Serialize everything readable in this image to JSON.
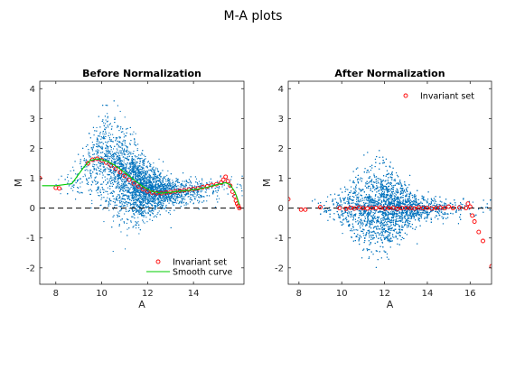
{
  "figure": {
    "title": "M-A plots"
  },
  "chart_data": [
    {
      "type": "scatter",
      "title": "Before Normalization",
      "xlabel": "A",
      "ylabel": "M",
      "xlim": [
        7.3,
        16.2
      ],
      "ylim": [
        -2.55,
        4.25
      ],
      "xticks": [
        8,
        10,
        12,
        14
      ],
      "yticks": [
        -2,
        -1,
        0,
        1,
        2,
        3,
        4
      ],
      "zero_line": 0,
      "grid": false,
      "legend_position": "bottom-right",
      "cloud": {
        "a_center": 11.3,
        "a_spread": 1.1,
        "shape": "arched",
        "color": "#0072BD"
      },
      "series": [
        {
          "name": "Invariant set",
          "marker": "open-circle",
          "color": "#FF0000",
          "x": [
            7.3,
            8.0,
            8.15,
            9.4,
            9.6,
            9.8,
            10.0,
            10.2,
            10.4,
            10.6,
            10.8,
            11.0,
            11.2,
            11.4,
            11.6,
            11.8,
            12.0,
            12.2,
            12.4,
            12.6,
            12.8,
            13.0,
            13.2,
            13.4,
            13.6,
            13.8,
            14.0,
            14.2,
            14.4,
            14.6,
            14.8,
            15.0,
            15.2,
            15.3,
            15.4,
            15.5,
            15.6,
            15.7,
            15.8,
            15.85,
            15.9,
            15.95,
            16.0
          ],
          "y": [
            1.0,
            0.68,
            0.66,
            1.5,
            1.62,
            1.65,
            1.6,
            1.52,
            1.43,
            1.32,
            1.2,
            1.08,
            0.95,
            0.83,
            0.72,
            0.63,
            0.56,
            0.52,
            0.5,
            0.5,
            0.52,
            0.54,
            0.56,
            0.58,
            0.6,
            0.62,
            0.64,
            0.66,
            0.7,
            0.73,
            0.77,
            0.8,
            0.85,
            0.95,
            1.05,
            0.9,
            0.75,
            0.55,
            0.4,
            0.25,
            0.15,
            0.08,
            0.0
          ]
        },
        {
          "name": "Smooth curve",
          "marker": "line",
          "color": "#00CC00",
          "x": [
            7.4,
            8.0,
            8.7,
            9.2,
            9.5,
            9.8,
            10.0,
            10.3,
            10.6,
            11.0,
            11.4,
            11.8,
            12.2,
            12.6,
            13.0,
            13.4,
            13.8,
            14.2,
            14.6,
            15.0,
            15.4,
            15.6,
            15.8,
            15.9,
            16.0
          ],
          "y": [
            0.75,
            0.75,
            0.82,
            1.35,
            1.6,
            1.65,
            1.62,
            1.55,
            1.42,
            1.2,
            0.95,
            0.72,
            0.56,
            0.5,
            0.53,
            0.57,
            0.6,
            0.64,
            0.7,
            0.78,
            0.85,
            0.78,
            0.55,
            0.35,
            0.1
          ]
        }
      ]
    },
    {
      "type": "scatter",
      "title": "After Normalization",
      "xlabel": "A",
      "ylabel": "M",
      "xlim": [
        7.5,
        17.0
      ],
      "ylim": [
        -2.55,
        4.25
      ],
      "xticks": [
        8,
        10,
        12,
        14,
        16
      ],
      "yticks": [
        -2,
        -1,
        0,
        1,
        2,
        3,
        4
      ],
      "zero_line": 0,
      "grid": false,
      "legend_position": "top-right",
      "cloud": {
        "a_center": 11.8,
        "a_spread": 1.1,
        "shape": "flat",
        "color": "#0072BD"
      },
      "series": [
        {
          "name": "Invariant set",
          "marker": "open-circle",
          "color": "#FF0000",
          "x": [
            7.5,
            8.1,
            8.3,
            9.0,
            9.9,
            10.2,
            10.4,
            10.6,
            10.8,
            11.0,
            11.2,
            11.4,
            11.6,
            11.8,
            12.0,
            12.2,
            12.4,
            12.6,
            12.8,
            13.0,
            13.2,
            13.4,
            13.6,
            13.8,
            14.0,
            14.2,
            14.4,
            14.6,
            14.8,
            15.0,
            15.2,
            15.5,
            15.8,
            15.9,
            16.0,
            16.1,
            16.2,
            16.4,
            16.6,
            17.0
          ],
          "y": [
            0.3,
            -0.05,
            -0.05,
            0.03,
            0.0,
            -0.02,
            0.01,
            -0.01,
            0.02,
            0.0,
            -0.01,
            0.01,
            0.0,
            0.02,
            -0.01,
            0.0,
            0.01,
            -0.02,
            0.0,
            0.01,
            0.0,
            -0.01,
            0.02,
            0.0,
            0.01,
            -0.01,
            0.0,
            0.02,
            0.0,
            0.05,
            0.0,
            0.02,
            0.0,
            0.15,
            0.05,
            -0.25,
            -0.45,
            -0.8,
            -1.1,
            -1.95
          ]
        }
      ]
    }
  ]
}
